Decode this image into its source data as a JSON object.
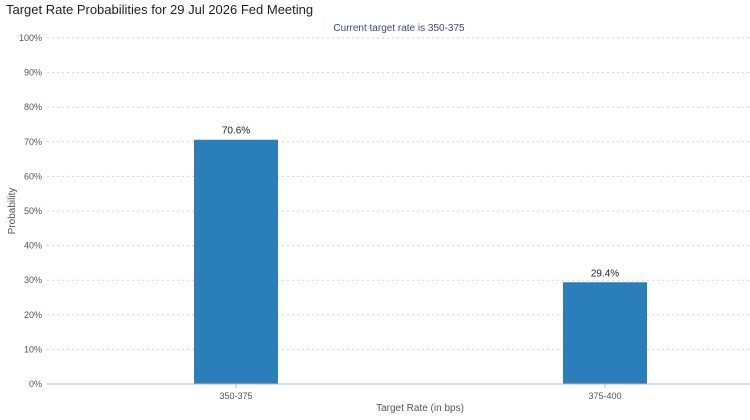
{
  "page": {
    "title": "Target Rate Probabilities for 29 Jul 2026 Fed Meeting"
  },
  "chart_data": {
    "type": "bar",
    "title": "Target Rate Probabilities for 29 Jul 2026 Fed Meeting",
    "subtitle": "Current target rate is 350-375",
    "xlabel": "Target Rate (in bps)",
    "ylabel": "Probability",
    "categories": [
      "350-375",
      "375-400"
    ],
    "values": [
      70.6,
      29.4
    ],
    "data_labels": [
      "70.6%",
      "29.4%"
    ],
    "ylim": [
      0,
      100
    ],
    "yticks": [
      0,
      10,
      20,
      30,
      40,
      50,
      60,
      70,
      80,
      90,
      100
    ],
    "ytick_labels": [
      "0%",
      "10%",
      "20%",
      "30%",
      "40%",
      "50%",
      "60%",
      "70%",
      "80%",
      "90%",
      "100%"
    ],
    "grid": "horizontal dotted",
    "legend": "none",
    "colors": {
      "bar": "#2a7fba",
      "grid": "#d6d6d6",
      "axis": "#bbbbbb",
      "subtitle": "#3a4a8a"
    }
  }
}
